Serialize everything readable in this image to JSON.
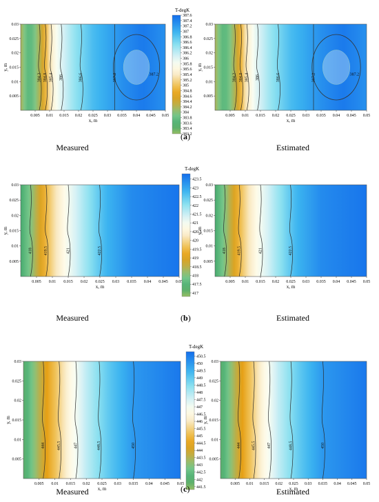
{
  "chart_data": [
    {
      "type": "heatmap",
      "panel_label": "a",
      "colorbar_title": "T-degK",
      "colorbar_ticks": [
        "387.6",
        "387.4",
        "387.2",
        "387",
        "386.8",
        "386.6",
        "386.4",
        "386.2",
        "386",
        "385.8",
        "385.6",
        "385.4",
        "385.2",
        "385",
        "384.8",
        "384.6",
        "384.4",
        "384.2",
        "384",
        "383.8",
        "383.6",
        "383.4",
        "383.2"
      ],
      "zlim": [
        383.2,
        387.6
      ],
      "xlabel": "x, m",
      "ylabel": "y, m",
      "x_ticks": [
        "0.005",
        "0.01",
        "0.015",
        "0.02",
        "0.025",
        "0.03",
        "0.035",
        "0.04",
        "0.045",
        "0.05"
      ],
      "y_ticks": [
        "0.03",
        "0.025",
        "0.02",
        "0.015",
        "0.01",
        "0.005"
      ],
      "xlim": [
        0,
        0.05
      ],
      "ylim": [
        0,
        0.03
      ],
      "profile": {
        "x": [
          0,
          0.003,
          0.007,
          0.01,
          0.013,
          0.018,
          0.025,
          0.035,
          0.042,
          0.05
        ],
        "T": [
          384.2,
          383.6,
          384.3,
          385.3,
          385.9,
          386.4,
          386.9,
          387.3,
          387.5,
          387.3
        ]
      },
      "hotspot": {
        "x": 0.04,
        "y": 0.015
      },
      "contours": [
        "384.2",
        "384.8",
        "385.4",
        "386",
        "386.6",
        "387.2"
      ],
      "subplots": [
        {
          "caption": "Measured",
          "contour_labels": [
            "384.2",
            "384.8",
            "385.4",
            "386",
            "386.6",
            "387.2",
            "387.2"
          ]
        },
        {
          "caption": "Estimated",
          "contour_labels": [
            "384.2",
            "384.8",
            "385.4",
            "386",
            "386.6",
            "387.2",
            "387.2"
          ]
        }
      ]
    },
    {
      "type": "heatmap",
      "panel_label": "b",
      "colorbar_title": "T-degK",
      "colorbar_ticks": [
        "423.5",
        "423",
        "422.5",
        "422",
        "421.5",
        "421",
        "420.5",
        "420",
        "419.5",
        "419",
        "418.5",
        "418",
        "417.5",
        "417"
      ],
      "zlim": [
        416.8,
        423.8
      ],
      "xlabel": "x, m",
      "ylabel": "y, m",
      "x_ticks": [
        "0.005",
        "0.01",
        "0.015",
        "0.02",
        "0.025",
        "0.03",
        "0.035",
        "0.04",
        "0.045",
        "0.05"
      ],
      "y_ticks": [
        "0.03",
        "0.025",
        "0.02",
        "0.015",
        "0.01",
        "0.005"
      ],
      "xlim": [
        0,
        0.05
      ],
      "ylim": [
        0,
        0.03
      ],
      "profile": {
        "x": [
          0,
          0.004,
          0.008,
          0.011,
          0.015,
          0.02,
          0.027,
          0.035,
          0.05
        ],
        "T": [
          417.3,
          418.2,
          419.5,
          420.2,
          421,
          421.8,
          422.8,
          423.4,
          423.7
        ]
      },
      "contours": [
        "418",
        "419.5",
        "421",
        "422.5"
      ],
      "subplots": [
        {
          "caption": "Measured",
          "contour_labels": [
            "418",
            "419.5",
            "421",
            "422.5"
          ]
        },
        {
          "caption": "Estimated",
          "contour_labels": [
            "418",
            "419.5",
            "421",
            "422.5"
          ]
        }
      ]
    },
    {
      "type": "heatmap",
      "panel_label": "c",
      "colorbar_title": "T-degK",
      "colorbar_ticks": [
        "450.5",
        "450",
        "449.5",
        "449",
        "448.5",
        "448",
        "447.5",
        "447",
        "446.5",
        "446",
        "445.5",
        "445",
        "444.5",
        "444",
        "443.5",
        "443",
        "442.5",
        "442",
        "441.5"
      ],
      "zlim": [
        441.3,
        450.8
      ],
      "xlabel": "x, m",
      "ylabel": "y, m",
      "x_ticks": [
        "0.005",
        "0.01",
        "0.015",
        "0.02",
        "0.025",
        "0.03",
        "0.035",
        "0.04",
        "0.045",
        "0.05"
      ],
      "y_ticks": [
        "0.03",
        "0.025",
        "0.02",
        "0.015",
        "0.01",
        "0.005"
      ],
      "xlim": [
        0,
        0.05
      ],
      "ylim": [
        0,
        0.03
      ],
      "profile": {
        "x": [
          0,
          0.004,
          0.008,
          0.011,
          0.015,
          0.02,
          0.027,
          0.035,
          0.05
        ],
        "T": [
          441.8,
          443.2,
          444.6,
          445.4,
          446.6,
          447.8,
          449,
          450,
          450.6
        ]
      },
      "contours": [
        "444",
        "445.5",
        "447",
        "448.5",
        "450"
      ],
      "subplots": [
        {
          "caption": "Measured",
          "contour_labels": [
            "444",
            "445.5",
            "447",
            "448.5",
            "450"
          ]
        },
        {
          "caption": "Estimated",
          "contour_labels": [
            "444",
            "445.5",
            "447",
            "448.5",
            "450"
          ]
        }
      ]
    }
  ]
}
